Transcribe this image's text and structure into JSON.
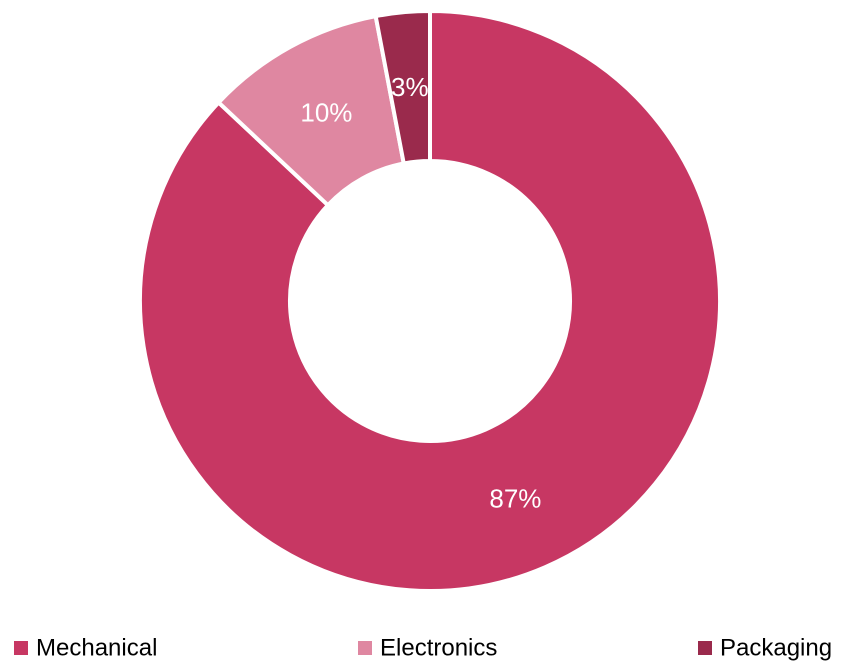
{
  "chart_data": {
    "type": "pie",
    "variant": "donut",
    "categories": [
      "Mechanical",
      "Electronics",
      "Packaging"
    ],
    "values": [
      87,
      10,
      3
    ],
    "data_labels": [
      "87%",
      "10%",
      "3%"
    ],
    "colors": [
      "#C73763",
      "#DF87A1",
      "#9A2A4C"
    ],
    "legend": {
      "position": "bottom",
      "entries": [
        "Mechanical",
        "Electronics",
        "Packaging"
      ]
    },
    "title": "",
    "start_angle": "12 o'clock",
    "direction": "clockwise"
  }
}
